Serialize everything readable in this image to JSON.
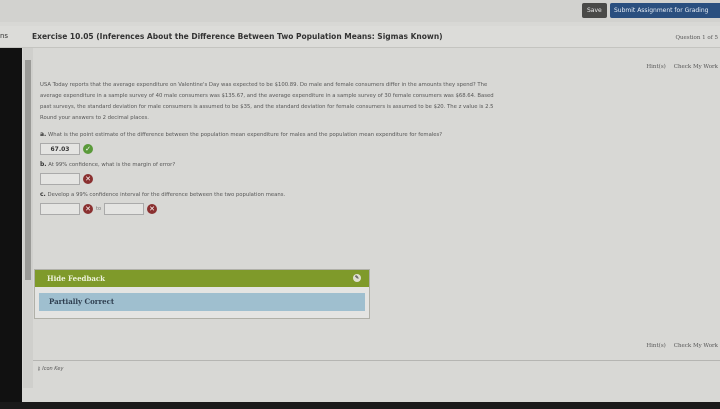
{
  "toolbar": {
    "save_label": "Save",
    "submit_label": "Submit Assignment for Grading"
  },
  "header": {
    "tab_fragment": "ns",
    "title": "Exercise 10.05 (Inferences About the Difference Between Two Population Means: Sigmas Known)",
    "question_num": "Question 1 of 5"
  },
  "links": {
    "hints": "Hint(s)",
    "check": "Check My Work"
  },
  "problem": {
    "p1": "USA Today reports that the average expenditure on Valentine's Day was expected to be $100.89. Do male and female consumers differ in the amounts they spend? The",
    "p2": "average expenditure in a sample survey of 40 male consumers was $135.67, and the average expenditure in a sample survey of 30 female consumers was $68.64. Based",
    "p3": "past surveys, the standard deviation for male consumers is assumed to be $35, and the standard deviation for female consumers is assumed to be $20. The z value is 2.5",
    "p4": "Round your answers to 2 decimal places."
  },
  "questions": {
    "a": {
      "label": "a.",
      "text": "What is the point estimate of the difference between the population mean expenditure for males and the population mean expenditure for females?",
      "answer": "67.03",
      "status": "correct"
    },
    "b": {
      "label": "b.",
      "text": "At 99% confidence, what is the margin of error?",
      "answer": "",
      "status": "incorrect"
    },
    "c": {
      "label": "c.",
      "text": "Develop a 99% confidence interval for the difference between the two population means.",
      "lower": "",
      "upper": "",
      "to": "to",
      "status": "incorrect"
    }
  },
  "feedback": {
    "toggle_label": "Hide Feedback",
    "status": "Partially Correct"
  },
  "footer": {
    "icon_key": "Icon Key"
  },
  "colors": {
    "feedback_header": "#7f9a2a",
    "feedback_status": "#9fbfcf",
    "submit": "#2a4f7f",
    "correct": "#5a9a3a",
    "incorrect": "#8a3030"
  }
}
